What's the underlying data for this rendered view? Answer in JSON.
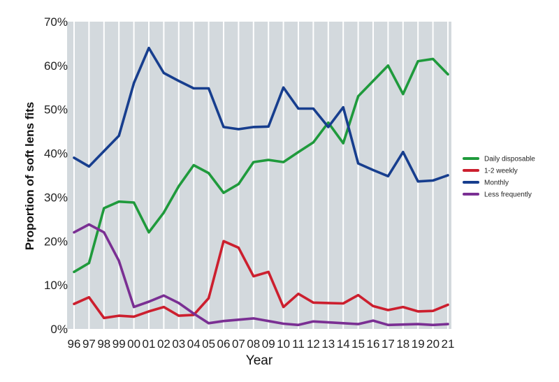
{
  "chart_data": {
    "type": "line",
    "title": "",
    "xlabel": "Year",
    "ylabel": "Proportion of soft lens fits",
    "ylim": [
      0,
      70
    ],
    "yticks": [
      "0%",
      "10%",
      "20%",
      "30%",
      "40%",
      "50%",
      "60%",
      "70%"
    ],
    "categories": [
      "96",
      "97",
      "98",
      "99",
      "00",
      "01",
      "02",
      "03",
      "04",
      "05",
      "06",
      "07",
      "08",
      "09",
      "10",
      "11",
      "12",
      "13",
      "14",
      "15",
      "16",
      "17",
      "18",
      "19",
      "20",
      "21"
    ],
    "grid": true,
    "legend_position": "right",
    "series": [
      {
        "name": "Daily disposable",
        "color": "#1f9a3c",
        "values": [
          13,
          15,
          27.5,
          29,
          28.8,
          22,
          26.5,
          32.5,
          37.3,
          35.5,
          31,
          33,
          38,
          38.5,
          38,
          40.3,
          42.5,
          47,
          42.3,
          53,
          56.5,
          60,
          53.5,
          61,
          61.5,
          58
        ]
      },
      {
        "name": "1-2 weekly",
        "color": "#cc1f2e",
        "values": [
          5.7,
          7.2,
          2.5,
          3,
          2.8,
          4,
          5,
          3,
          3.2,
          7,
          20,
          18.5,
          12,
          13,
          5,
          8,
          6,
          5.9,
          5.8,
          7.7,
          5.2,
          4.3,
          5,
          4,
          4.1,
          5.5
        ]
      },
      {
        "name": "Monthly",
        "color": "#173e8e",
        "values": [
          39,
          37,
          40.5,
          44,
          56,
          64,
          58.3,
          56.5,
          54.8,
          54.8,
          46,
          45.5,
          46,
          46.1,
          55,
          50.2,
          50.2,
          46,
          50.5,
          37.7,
          36.2,
          34.8,
          40.3,
          33.6,
          33.8,
          35
        ]
      },
      {
        "name": "Less frequently",
        "color": "#7a2f93",
        "values": [
          22,
          23.8,
          22,
          15.5,
          5,
          6.2,
          7.6,
          5.9,
          3.5,
          1.3,
          1.8,
          2.1,
          2.4,
          1.8,
          1.2,
          0.9,
          1.7,
          1.5,
          1.3,
          1.1,
          1.9,
          0.9,
          1,
          1.1,
          0.9,
          1.1
        ]
      }
    ]
  }
}
